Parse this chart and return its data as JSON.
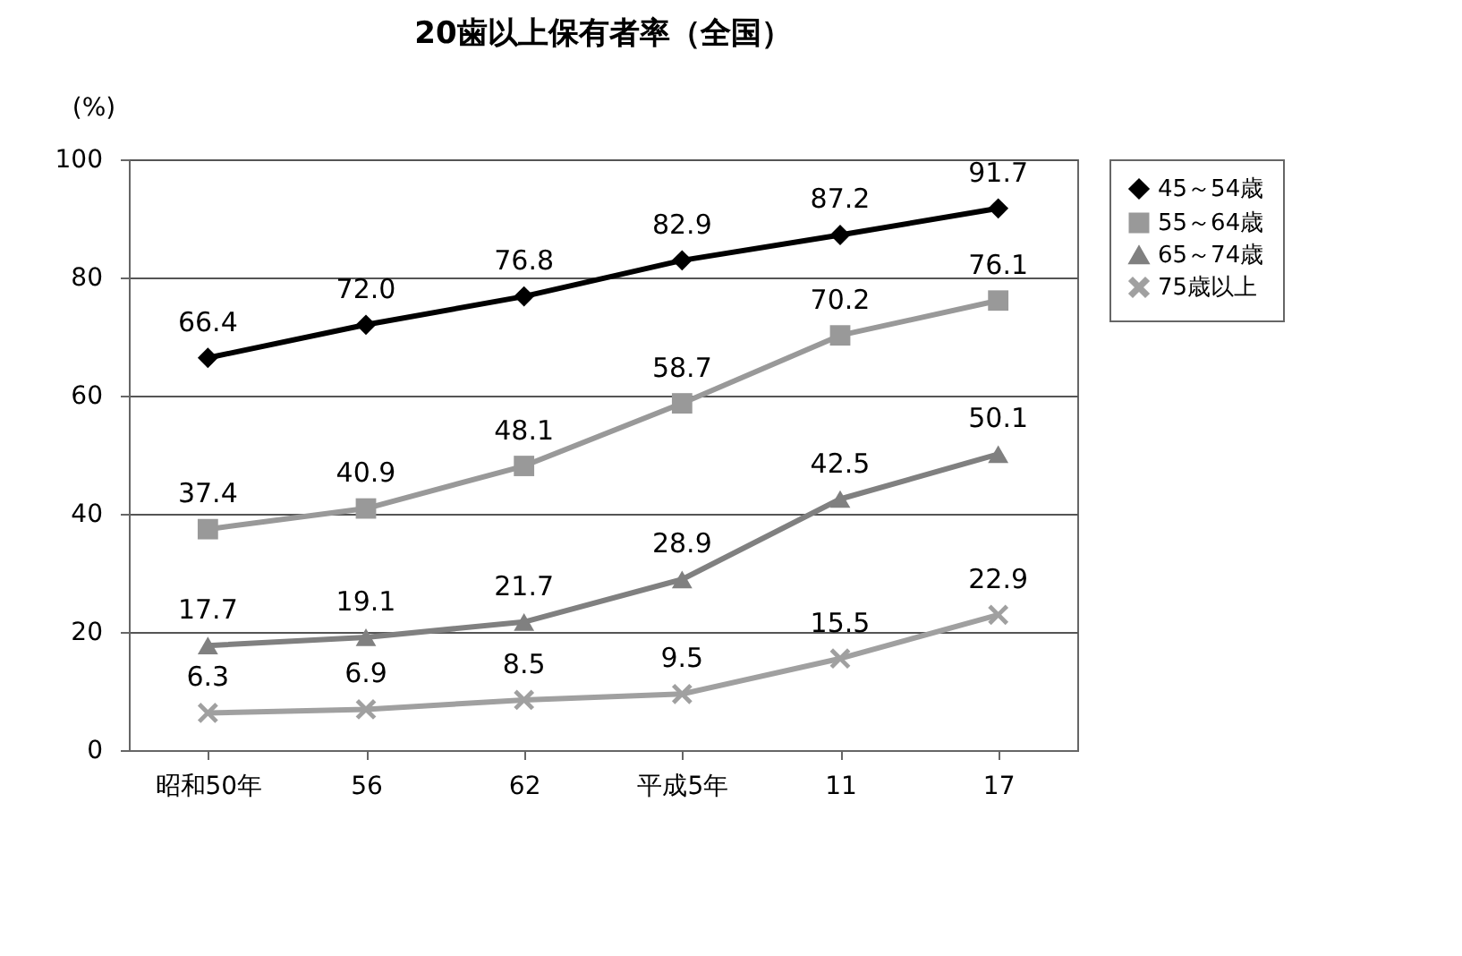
{
  "chart_data": {
    "type": "line",
    "title": "20歯以上保有者率（全国）",
    "ylabel": "(%)",
    "categories": [
      "昭和50年",
      "56",
      "62",
      "平成5年",
      "11",
      "17"
    ],
    "series": [
      {
        "name": "45～54歳",
        "color": "#000000",
        "marker": "diamond",
        "values": [
          66.4,
          72.0,
          76.8,
          82.9,
          87.2,
          91.7
        ],
        "value_labels": [
          "66.4",
          "72.0",
          "76.8",
          "82.9",
          "87.2",
          "91.7"
        ]
      },
      {
        "name": "55～64歳",
        "color": "#999999",
        "marker": "square",
        "values": [
          37.4,
          40.9,
          48.1,
          58.7,
          70.2,
          76.1
        ],
        "value_labels": [
          "37.4",
          "40.9",
          "48.1",
          "58.7",
          "70.2",
          "76.1"
        ]
      },
      {
        "name": "65～74歳",
        "color": "#808080",
        "marker": "triangle",
        "values": [
          17.7,
          19.1,
          21.7,
          28.9,
          42.5,
          50.1
        ],
        "value_labels": [
          "17.7",
          "19.1",
          "21.7",
          "28.9",
          "42.5",
          "50.1"
        ]
      },
      {
        "name": "75歳以上",
        "color": "#a0a0a0",
        "marker": "cross",
        "values": [
          6.3,
          6.9,
          8.5,
          9.5,
          15.5,
          22.9
        ],
        "value_labels": [
          "6.3",
          "6.9",
          "8.5",
          "9.5",
          "15.5",
          "22.9"
        ]
      }
    ],
    "ylim": [
      0,
      100
    ],
    "yticks": [
      0,
      20,
      40,
      60,
      80,
      100
    ],
    "grid": "y",
    "legend": "right"
  }
}
